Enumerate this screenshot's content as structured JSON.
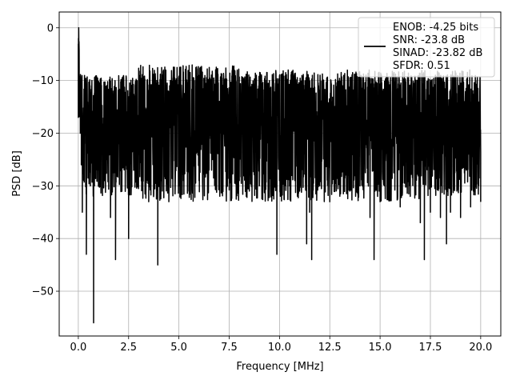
{
  "chart_data": {
    "type": "line",
    "title": "",
    "xlabel": "Frequency [MHz]",
    "ylabel": "PSD [dB]",
    "xlim": [
      -0.95,
      21.0
    ],
    "ylim": [
      -58.5,
      3.0
    ],
    "xticks": [
      0.0,
      2.5,
      5.0,
      7.5,
      10.0,
      12.5,
      15.0,
      17.5,
      20.0
    ],
    "xtick_labels": [
      "0.0",
      "2.5",
      "5.0",
      "7.5",
      "10.0",
      "12.5",
      "15.0",
      "17.5",
      "20.0"
    ],
    "yticks": [
      0,
      -10,
      -20,
      -30,
      -40,
      -50
    ],
    "ytick_labels": [
      "0",
      "−10",
      "−20",
      "−30",
      "−40",
      "−50"
    ],
    "grid": true,
    "legend_position": "top-right",
    "legend_entries": [
      "ENOB: -4.25 bits",
      "SNR: -23.8 dB",
      "SINAD: -23.82 dB",
      "SFDR: 0.51"
    ],
    "line_color": "#000000",
    "series": [
      {
        "name": "ENOB: -4.25 bits\nSNR: -23.8 dB\nSINAD: -23.82 dB\nSFDR: 0.51",
        "description": "Dense noisy PSD trace, values fluctuate roughly between -10 dB and -30 dB across 0–20 MHz",
        "x": [
          0.0,
          0.02,
          0.04,
          0.07,
          0.1,
          0.15,
          0.2,
          0.3,
          0.4,
          0.5,
          0.6,
          0.7,
          0.76,
          0.8,
          1.0,
          1.3,
          1.6,
          1.85,
          2.0,
          2.5,
          2.9,
          3.0,
          3.5,
          3.95,
          4.0,
          4.5,
          5.0,
          5.5,
          6.0,
          6.5,
          7.0,
          7.5,
          8.0,
          8.5,
          9.0,
          9.5,
          9.87,
          10.0,
          10.5,
          11.0,
          11.35,
          11.5,
          11.6,
          12.0,
          12.5,
          13.0,
          13.5,
          14.0,
          14.5,
          14.7,
          15.0,
          15.5,
          16.0,
          16.5,
          17.0,
          17.2,
          17.5,
          18.0,
          18.3,
          18.5,
          19.0,
          19.5,
          20.0
        ],
        "y": [
          -17,
          0,
          -4,
          -12,
          -20,
          -26,
          -35,
          -22,
          -43,
          -28,
          -30,
          -18,
          -56,
          -30,
          -25,
          -29,
          -36,
          -44,
          -22,
          -40,
          -29,
          -24,
          -33,
          -45,
          -22,
          -33,
          -30,
          -31,
          -29,
          -27,
          -28,
          -30,
          -29,
          -31,
          -30,
          -32,
          -43,
          -29,
          -30,
          -31,
          -41,
          -35,
          -44,
          -30,
          -33,
          -31,
          -31,
          -30,
          -36,
          -44,
          -33,
          -31,
          -34,
          -32,
          -37,
          -44,
          -35,
          -36,
          -41,
          -35,
          -36,
          -34,
          -33
        ]
      }
    ]
  }
}
